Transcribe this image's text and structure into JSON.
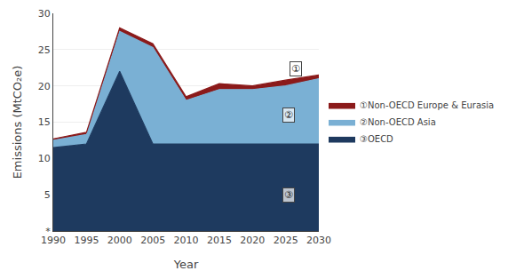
{
  "chart_data": {
    "type": "area",
    "stacked": true,
    "x": [
      1990,
      1995,
      2000,
      2005,
      2010,
      2015,
      2020,
      2025,
      2030
    ],
    "series": [
      {
        "name": "③OECD",
        "color": "#1e3a5f",
        "values": [
          11.5,
          12.0,
          22.0,
          12.0,
          12.0,
          12.0,
          12.0,
          12.0,
          12.0
        ]
      },
      {
        "name": "②Non-OECD Asia",
        "color": "#7ab0d4",
        "values": [
          1.0,
          1.3,
          5.5,
          13.3,
          6.0,
          7.5,
          7.5,
          8.0,
          9.0
        ]
      },
      {
        "name": "①Non-OECD Europe & Eurasia",
        "color": "#8b1a1a",
        "values": [
          0.2,
          0.3,
          0.5,
          0.5,
          0.5,
          0.8,
          0.5,
          0.8,
          0.5
        ]
      }
    ],
    "xlabel": "Year",
    "ylabel": "Emissions (MtCO₂e)",
    "xlim": [
      1990,
      2030
    ],
    "xticks": [
      1990,
      1995,
      2000,
      2005,
      2010,
      2015,
      2020,
      2025,
      2030
    ],
    "ylim": [
      0,
      30
    ],
    "yticks": [
      {
        "value": 0,
        "label": "*"
      },
      5,
      10,
      15,
      20,
      25,
      30
    ],
    "grid": true,
    "legend": "right",
    "annotations": [
      {
        "text": "①",
        "x": 2026.5,
        "y": 22.3
      },
      {
        "text": "②",
        "x": 2025.5,
        "y": 16.0
      },
      {
        "text": "③",
        "x": 2025.5,
        "y": 5.0
      }
    ]
  }
}
